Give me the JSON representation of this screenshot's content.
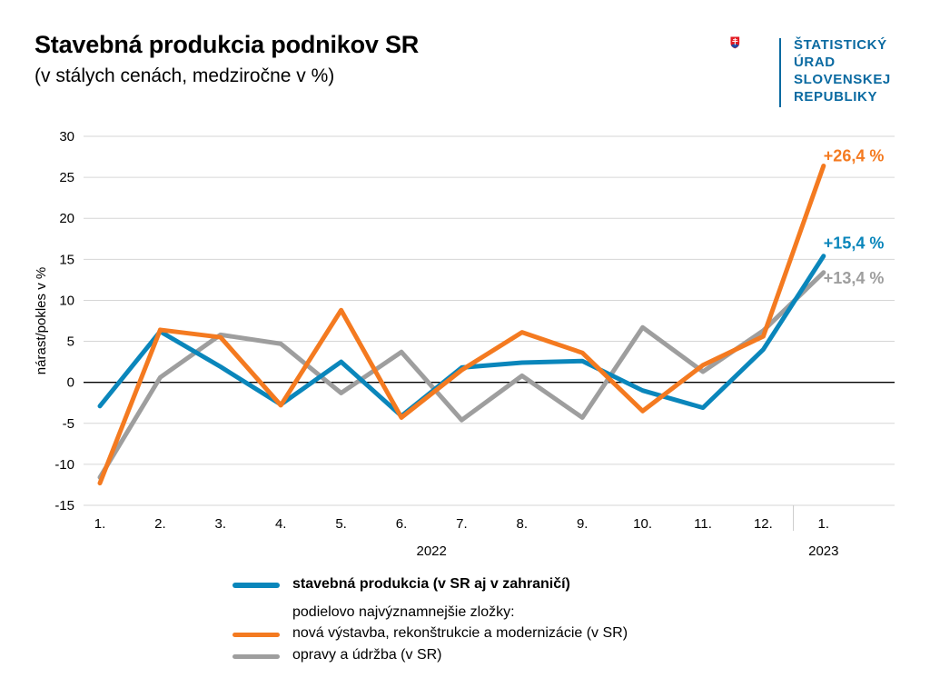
{
  "header": {
    "title": "Stavebná produkcia podnikov SR",
    "subtitle": "(v stálych cenách, medziročne v %)"
  },
  "logo": {
    "lines": [
      "ŠTATISTICKÝ",
      "ÚRAD",
      "SLOVENSKEJ",
      "REPUBLIKY"
    ],
    "color": "#0a6aa1"
  },
  "chart_data": {
    "type": "line",
    "title": "Stavebná produkcia podnikov SR",
    "subtitle": "(v stálych cenách, medziročne v %)",
    "ylabel": "nárast/pokles v %",
    "xlabel": "",
    "ylim": [
      -15,
      30
    ],
    "yticks": [
      -15,
      -10,
      -5,
      0,
      5,
      10,
      15,
      20,
      25,
      30
    ],
    "categories": [
      "1.",
      "2.",
      "3.",
      "4.",
      "5.",
      "6.",
      "7.",
      "8.",
      "9.",
      "10.",
      "11.",
      "12.",
      "1."
    ],
    "year_groups": [
      {
        "label": "2022",
        "start": 0,
        "end": 11
      },
      {
        "label": "2023",
        "start": 12,
        "end": 12
      }
    ],
    "grid": true,
    "series": [
      {
        "name": "stavebná produkcia (v SR aj v zahraničí)",
        "color": "#0a86bb",
        "values": [
          -2.9,
          6.2,
          1.9,
          -2.7,
          2.5,
          -4.1,
          1.8,
          2.4,
          2.6,
          -1.0,
          -3.1,
          4.0,
          15.4
        ],
        "end_label": "+15,4 %"
      },
      {
        "name": "nová výstavba, rekonštrukcie a modernizácie (v SR)",
        "color": "#f47a20",
        "values": [
          -12.3,
          6.4,
          5.5,
          -2.8,
          8.8,
          -4.3,
          1.5,
          6.1,
          3.6,
          -3.5,
          2.1,
          5.6,
          26.4
        ],
        "end_label": "+26,4 %"
      },
      {
        "name": "opravy a údržba (v SR)",
        "color": "#9e9e9e",
        "values": [
          -11.6,
          0.6,
          5.8,
          4.7,
          -1.3,
          3.7,
          -4.6,
          0.8,
          -4.3,
          6.7,
          1.3,
          6.3,
          13.4
        ],
        "end_label": "+13,4 %"
      }
    ],
    "legend": {
      "placement": "bottom",
      "note": "podielovo najvýznamnejšie zložky:"
    }
  }
}
